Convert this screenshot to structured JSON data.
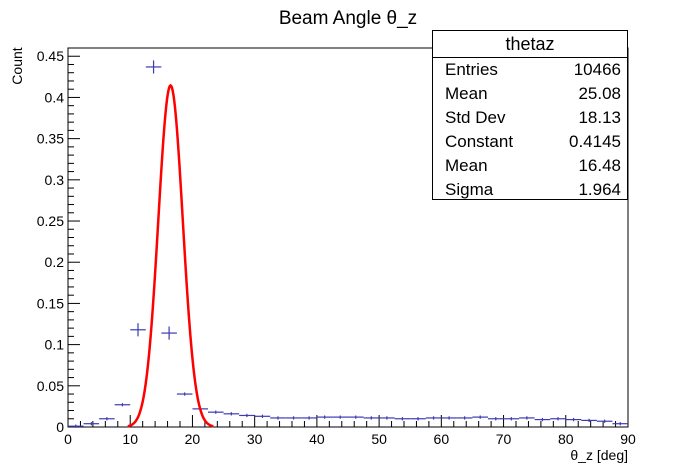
{
  "chart_data": {
    "type": "histogram",
    "title": "Beam Angle θ_z",
    "xlabel": "θ_z [deg]",
    "ylabel": "Count",
    "xlim": [
      0,
      90
    ],
    "ylim": [
      0,
      0.46
    ],
    "x_ticks": [
      0,
      10,
      20,
      30,
      40,
      50,
      60,
      70,
      80,
      90
    ],
    "y_ticks": [
      0,
      0.05,
      0.1,
      0.15,
      0.2,
      0.25,
      0.3,
      0.35,
      0.4,
      0.45
    ],
    "y_tick_labels": [
      "0",
      "0.05",
      "0.1",
      "0.15",
      "0.2",
      "0.25",
      "0.3",
      "0.35",
      "0.4",
      "0.45"
    ],
    "bin_width": 2.5,
    "bin_centers": [
      1.25,
      3.75,
      6.25,
      8.75,
      11.25,
      13.75,
      16.25,
      18.75,
      21.25,
      23.75,
      26.25,
      28.75,
      31.25,
      33.75,
      36.25,
      38.75,
      41.25,
      43.75,
      46.25,
      48.75,
      51.25,
      53.75,
      56.25,
      58.75,
      61.25,
      63.75,
      66.25,
      68.75,
      71.25,
      73.75,
      76.25,
      78.75,
      81.25,
      83.75,
      86.25,
      88.75
    ],
    "bin_values": [
      0.001,
      0.004,
      0.01,
      0.027,
      0.118,
      0.437,
      0.114,
      0.04,
      0.022,
      0.018,
      0.016,
      0.014,
      0.013,
      0.011,
      0.011,
      0.011,
      0.012,
      0.012,
      0.012,
      0.011,
      0.011,
      0.01,
      0.01,
      0.011,
      0.011,
      0.011,
      0.012,
      0.01,
      0.01,
      0.011,
      0.009,
      0.01,
      0.009,
      0.008,
      0.007,
      0.004
    ],
    "series": [
      {
        "name": "thetaz",
        "color": "#3b3bb3"
      },
      {
        "name": "fit",
        "color": "#ff0000",
        "function": "gaussian",
        "constant": 0.4145,
        "mean": 16.48,
        "sigma": 1.964
      }
    ],
    "grid": false
  },
  "stats": {
    "title": "thetaz",
    "rows": [
      {
        "label": "Entries",
        "value": "10466"
      },
      {
        "label": "Mean",
        "value": "25.08"
      },
      {
        "label": "Std Dev",
        "value": "18.13"
      },
      {
        "label": "Constant",
        "value": "0.4145"
      },
      {
        "label": "Mean",
        "value": "16.48"
      },
      {
        "label": "Sigma",
        "value": "1.964"
      }
    ]
  },
  "colors": {
    "histogram": "#3b3bb3",
    "fit": "#ff0000",
    "axis": "#000000"
  }
}
